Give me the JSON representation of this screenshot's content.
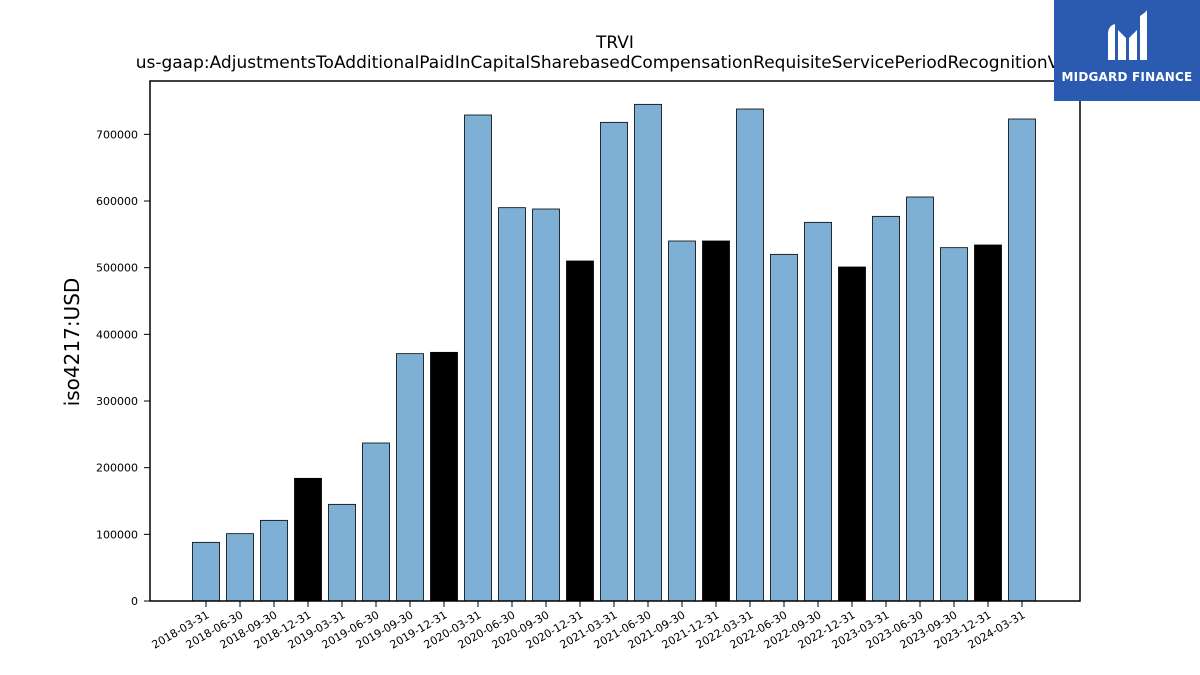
{
  "brand": {
    "logo_text": "MIDGARD FINANCE",
    "background_color": "#2b5bb0"
  },
  "chart_data": {
    "type": "bar",
    "title": "TRVI",
    "subtitle": "us-gaap:AdjustmentsToAdditionalPaidInCapitalSharebasedCompensationRequisiteServicePeriodRecognitionValue",
    "xlabel": "",
    "ylabel": "iso4217:USD",
    "ylim": [
      0,
      780000
    ],
    "yticks": [
      0,
      100000,
      200000,
      300000,
      400000,
      500000,
      600000,
      700000
    ],
    "grid": false,
    "colors": {
      "quarter": "#7eb0d5",
      "year_end": "#000000",
      "edge": "#000000"
    },
    "categories": [
      "2018-03-31",
      "2018-06-30",
      "2018-09-30",
      "2018-12-31",
      "2019-03-31",
      "2019-06-30",
      "2019-09-30",
      "2019-12-31",
      "2020-03-31",
      "2020-06-30",
      "2020-09-30",
      "2020-12-31",
      "2021-03-31",
      "2021-06-30",
      "2021-09-30",
      "2021-12-31",
      "2022-03-31",
      "2022-06-30",
      "2022-09-30",
      "2022-12-31",
      "2023-03-31",
      "2023-06-30",
      "2023-09-30",
      "2023-12-31",
      "2024-03-31"
    ],
    "values": [
      88000,
      101000,
      121000,
      184000,
      145000,
      237000,
      371000,
      373000,
      729000,
      590000,
      588000,
      510000,
      718000,
      745000,
      540000,
      540000,
      738000,
      520000,
      568000,
      501000,
      577000,
      606000,
      530000,
      534000,
      723000
    ],
    "year_end": [
      false,
      false,
      false,
      true,
      false,
      false,
      false,
      true,
      false,
      false,
      false,
      true,
      false,
      false,
      false,
      true,
      false,
      false,
      false,
      true,
      false,
      false,
      false,
      true,
      false
    ]
  }
}
